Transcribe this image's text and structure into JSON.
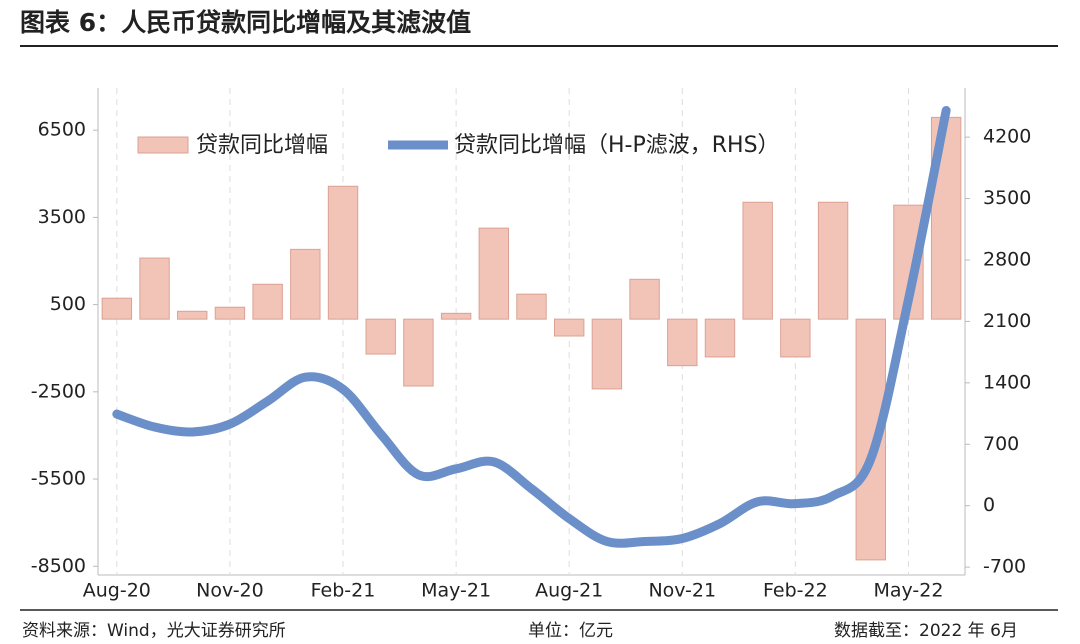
{
  "chart_data": {
    "type": "combo",
    "title": "图表 6：人民币贷款同比增幅及其滤波值",
    "categories": [
      "Aug-20",
      null,
      null,
      "Nov-20",
      null,
      null,
      "Feb-21",
      null,
      null,
      "May-21",
      null,
      null,
      "Aug-21",
      null,
      null,
      "Nov-21",
      null,
      null,
      "Feb-22",
      null,
      null,
      "May-22",
      null
    ],
    "series": [
      {
        "name": "贷款同比增幅",
        "type": "bar",
        "color": "#f2c4b8",
        "values": [
          720,
          2100,
          270,
          410,
          1200,
          2400,
          4570,
          -1200,
          -2300,
          200,
          3130,
          860,
          -580,
          -2400,
          1370,
          -1600,
          -1300,
          4020,
          -1300,
          4020,
          -8280,
          3920,
          6940
        ]
      },
      {
        "name": "贷款同比增幅（H-P滤波，RHS）",
        "type": "line",
        "axis": "y2",
        "color": "#6b8fc9",
        "values": [
          1044,
          896,
          840,
          930,
          1191,
          1464,
          1327,
          817,
          352,
          420,
          499,
          193,
          -147,
          -408,
          -408,
          -374,
          -204,
          45,
          23,
          113,
          533,
          2349,
          4504
        ]
      }
    ],
    "ylim": [
      -8800,
      7950
    ],
    "yticks": [
      -8500,
      -5500,
      -2500,
      500,
      3500,
      6500
    ],
    "y2lim": [
      -790,
      4760
    ],
    "y2ticks": [
      -700,
      0,
      700,
      1400,
      2100,
      2800,
      3500,
      4200
    ],
    "xgrid": true,
    "legend": "top"
  },
  "footer": {
    "source": "资料来源：Wind，光大证券研究所",
    "unit": "单位：亿元",
    "date": "数据截至：2022 年 6月"
  }
}
